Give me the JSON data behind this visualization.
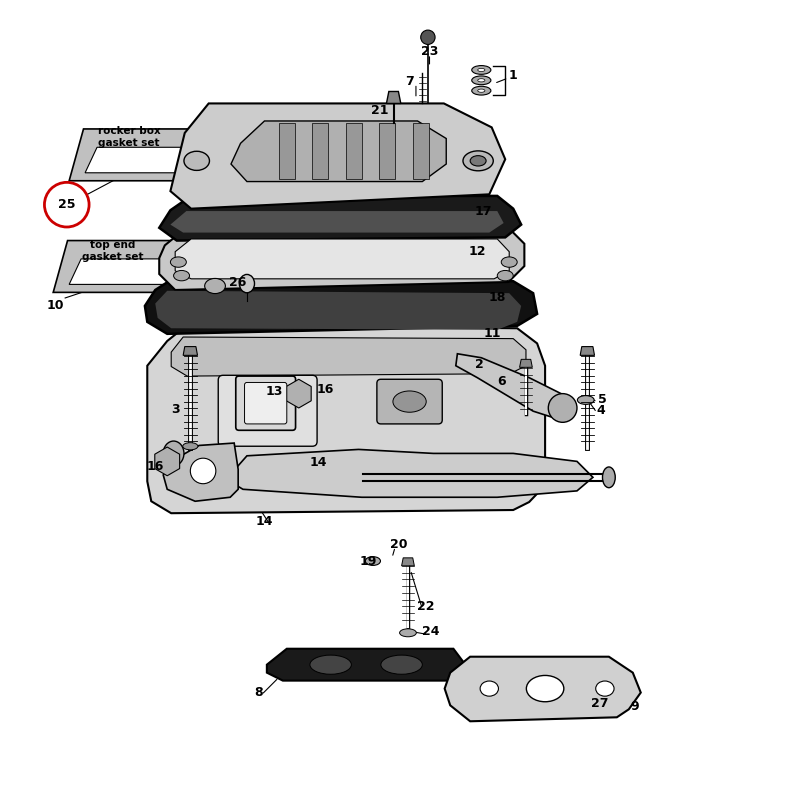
{
  "background_color": "#ffffff",
  "line_color": "#000000",
  "part_color": "#d0d0d0",
  "part_color2": "#b8b8b8",
  "part_color3": "#e8e8e8",
  "label_color": "#000000",
  "red_circle_color": "#cc0000",
  "gasket_box_color": "#a0a0a0",
  "rocker_box_label": "rocker box\ngasket set",
  "top_end_label": "top end\ngasket set"
}
